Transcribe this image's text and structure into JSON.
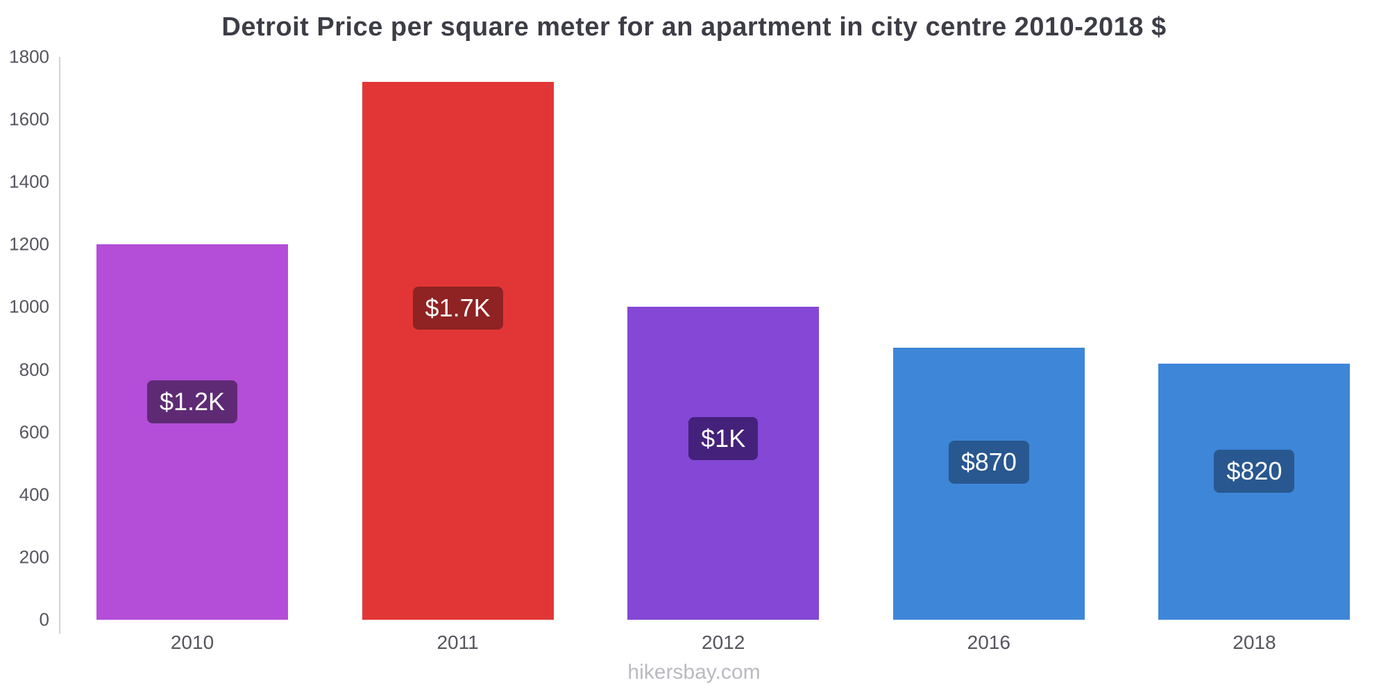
{
  "title": "Detroit Price per square meter for an apartment in city centre 2010-2018 $",
  "footer": "hikersbay.com",
  "chart_data": {
    "type": "bar",
    "title": "Detroit Price per square meter for an apartment in city centre 2010-2018 $",
    "categories": [
      "2010",
      "2011",
      "2012",
      "2016",
      "2018"
    ],
    "values": [
      1200,
      1720,
      1000,
      870,
      820
    ],
    "value_labels": [
      "$1.2K",
      "$1.7K",
      "$1K",
      "$870",
      "$820"
    ],
    "bar_colors": [
      "#b44dd8",
      "#e23636",
      "#8447d6",
      "#3e86d8",
      "#3e86d8"
    ],
    "label_bg_colors": [
      "#5e2a74",
      "#8f2222",
      "#44217a",
      "#28588f",
      "#28588f"
    ],
    "xlabel": "",
    "ylabel": "",
    "ylim": [
      0,
      1800
    ],
    "yticks": [
      0,
      200,
      400,
      600,
      800,
      1000,
      1200,
      1400,
      1600,
      1800
    ],
    "grid": false,
    "legend_position": "none",
    "currency": "$"
  }
}
